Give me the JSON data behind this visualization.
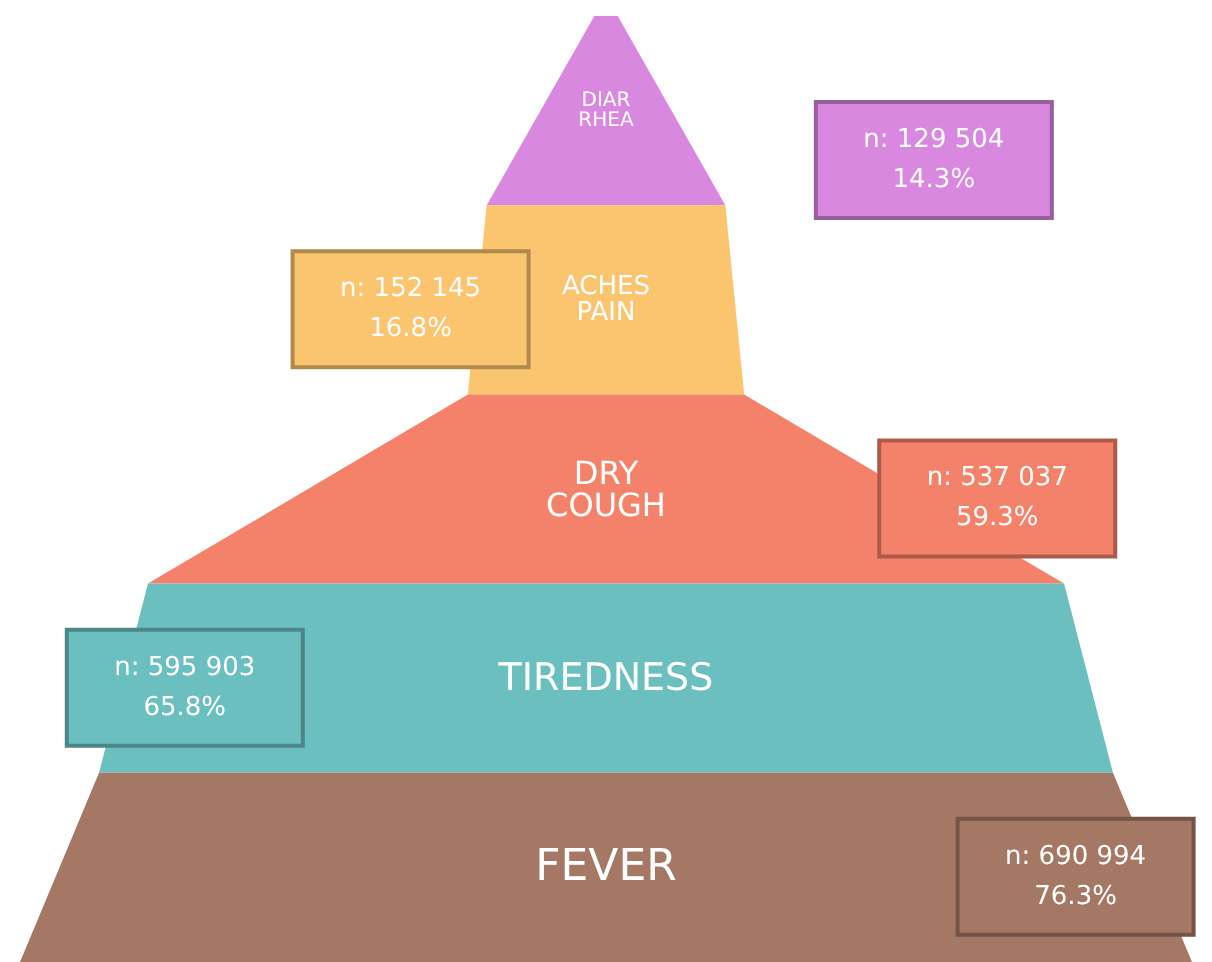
{
  "chart_data": {
    "type": "other",
    "categories": [
      "DIAR\nRHEA",
      "ACHES\nPAIN",
      "DRY\nCOUGH",
      "TIREDNESS",
      "FEVER"
    ],
    "values": [
      129504,
      152145,
      537037,
      595903,
      690994
    ],
    "colors": [
      "#d988e0",
      "#fbc46e",
      "#f4826a",
      "#6cbfbf",
      "#a57866"
    ],
    "value_labels": [
      "n: 129 504\n14.3%",
      "n: 152 145\n16.8%",
      "n: 537 037\n59.3%",
      "n: 595 903\n65.8%",
      "n: 690 994\n76.3%"
    ]
  }
}
